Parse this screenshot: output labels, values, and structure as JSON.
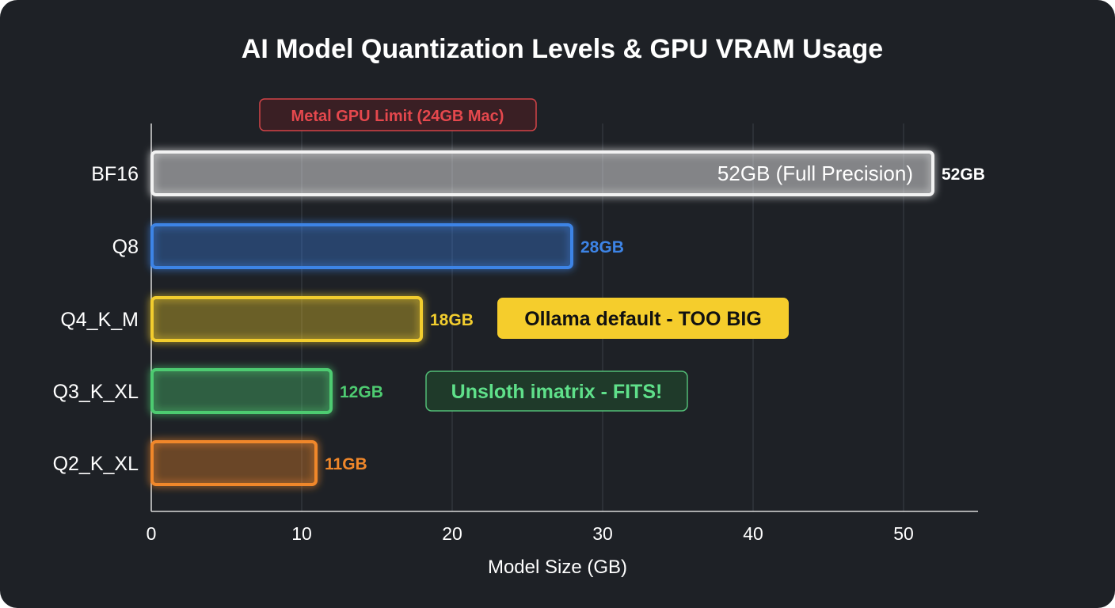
{
  "chart_data": {
    "type": "bar",
    "orientation": "horizontal",
    "title": "AI Model Quantization Levels & GPU VRAM Usage",
    "xlabel": "Model Size (GB)",
    "ylabel": "",
    "xlim": [
      0,
      55
    ],
    "xticks": [
      0,
      10,
      20,
      30,
      40,
      50
    ],
    "grid": true,
    "categories": [
      "BF16",
      "Q8",
      "Q4_K_M",
      "Q3_K_XL",
      "Q2_K_XL"
    ],
    "values": [
      52,
      28,
      18,
      12,
      11
    ],
    "value_labels": [
      "52GB",
      "28GB",
      "18GB",
      "12GB",
      "11GB"
    ],
    "bar_colors": [
      "#f2f2f2",
      "#3d84e6",
      "#f2cd2e",
      "#4ecb71",
      "#f0872a"
    ],
    "inner_labels": [
      "52GB (Full Precision)",
      "",
      "",
      "",
      ""
    ],
    "reference_line": {
      "x": 16.3,
      "label": "Metal GPU Limit (24GB Mac)",
      "color": "#e5484d"
    },
    "annotations": [
      {
        "category": "Q4_K_M",
        "text": "Ollama default - TOO BIG",
        "style": "filled",
        "bg": "#f5cd2c",
        "fg": "#111111"
      },
      {
        "category": "Q3_K_XL",
        "text": "Unsloth imatrix - FITS!",
        "style": "outlined",
        "bg": "#1f3a2a",
        "fg": "#5fe08a"
      }
    ]
  }
}
